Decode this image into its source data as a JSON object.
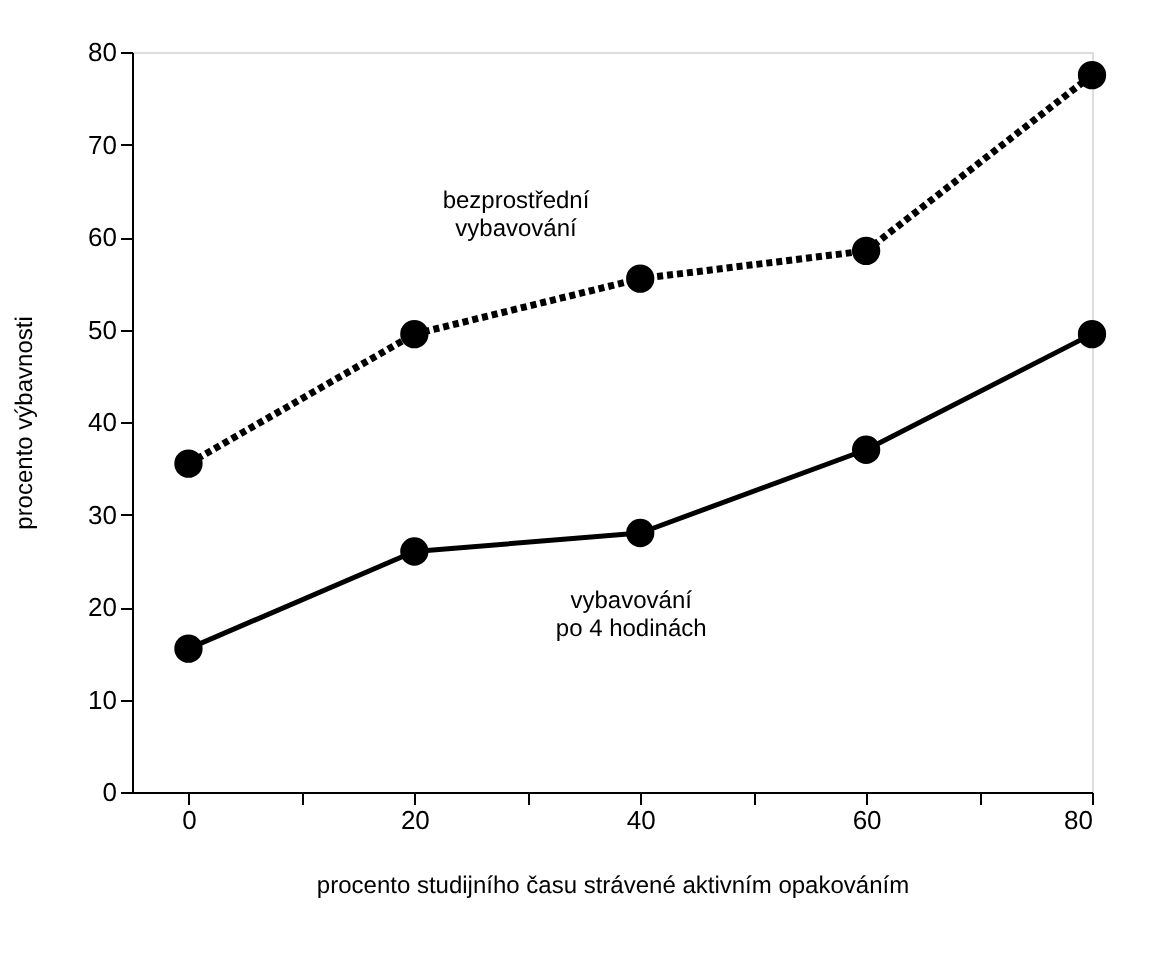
{
  "chart_data": {
    "type": "line",
    "xlabel": "procento studijního času strávené aktivním opakováním",
    "ylabel": "procento výbavnosti",
    "x": [
      0,
      20,
      40,
      60,
      80
    ],
    "series": [
      {
        "color": "#000000",
        "values": [
          35.5,
          49.5,
          55.5,
          58.5,
          77.5
        ],
        "line_style": "dotted"
      },
      {
        "color": "#000000",
        "values": [
          15.5,
          26,
          28,
          37,
          49.5
        ],
        "line_style": "solid"
      }
    ],
    "xlim": [
      -5,
      80
    ],
    "xticks": [
      0,
      {
        "value": 10,
        "label": null
      },
      20,
      {
        "value": 30,
        "label": null
      },
      40,
      {
        "value": 50,
        "label": null
      },
      60,
      {
        "value": 70,
        "label": null
      },
      80
    ],
    "ylim": [
      0,
      80
    ],
    "yticks": [
      0,
      10,
      20,
      30,
      40,
      50,
      60,
      70,
      80
    ],
    "marker": "circle",
    "grid": false,
    "annotations": [
      "bezprostřední\nvybavování",
      "vybavování\npo 4 hodinách"
    ]
  }
}
